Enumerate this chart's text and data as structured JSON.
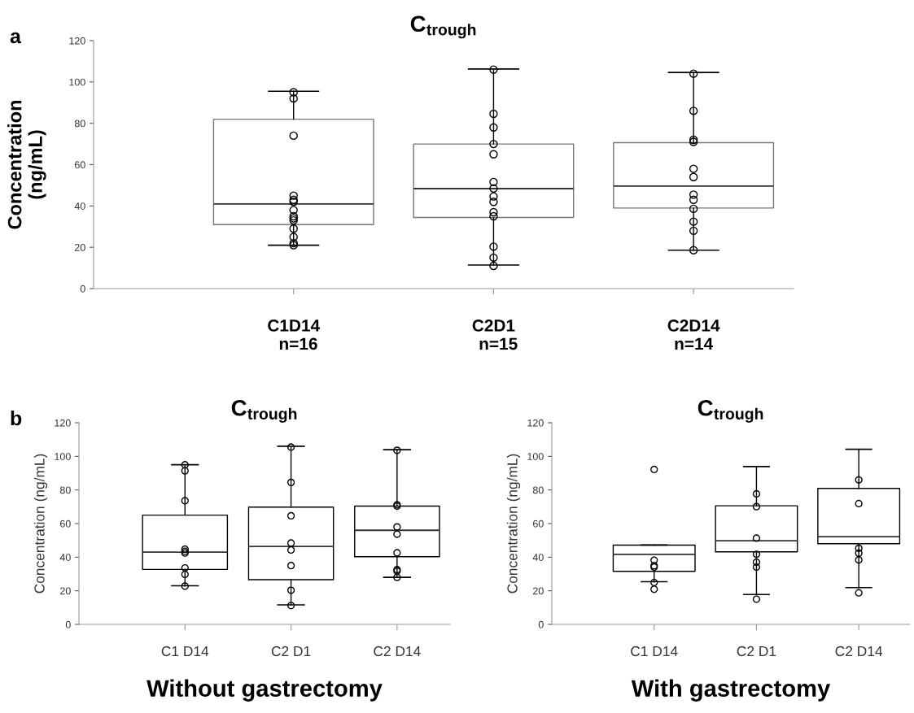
{
  "chart_data": [
    {
      "type": "box",
      "title": "C$_{trough}$",
      "ylabel": "Concentration\n(ng/mL)",
      "annotations": [
        "a"
      ],
      "categories": [
        "C1D14\n  n=16",
        "C2D1\n  n=15",
        "C2D14\nn=14"
      ],
      "ylim": [
        0,
        120
      ],
      "yticks": [
        0,
        20,
        40,
        60,
        80,
        100,
        120
      ],
      "grid": false,
      "marker": "circle",
      "boxes": [
        {
          "low": 21,
          "q1": 31,
          "median": 41,
          "q3": 82,
          "high": 95.5
        },
        {
          "low": 11.4,
          "q1": 34.4,
          "median": 48.4,
          "q3": 70,
          "high": 106.3
        },
        {
          "low": 18.6,
          "q1": 39,
          "median": 49.6,
          "q3": 70.6,
          "high": 104.6
        }
      ],
      "series": [
        {
          "type": "scatter",
          "color": "#000000",
          "x": [
            "C1D14\n  n=16",
            "C1D14\n  n=16",
            "C1D14\n  n=16",
            "C1D14\n  n=16",
            "C1D14\n  n=16",
            "C1D14\n  n=16",
            "C1D14\n  n=16",
            "C1D14\n  n=16",
            "C1D14\n  n=16",
            "C1D14\n  n=16",
            "C1D14\n  n=16",
            "C1D14\n  n=16",
            "C1D14\n  n=16",
            "C1D14\n  n=16",
            "C2D1\n  n=15",
            "C2D1\n  n=15",
            "C2D1\n  n=15",
            "C2D1\n  n=15",
            "C2D1\n  n=15",
            "C2D1\n  n=15",
            "C2D1\n  n=15",
            "C2D1\n  n=15",
            "C2D1\n  n=15",
            "C2D1\n  n=15",
            "C2D1\n  n=15",
            "C2D1\n  n=15",
            "C2D1\n  n=15",
            "C2D1\n  n=15",
            "C2D14\nn=14",
            "C2D14\nn=14",
            "C2D14\nn=14",
            "C2D14\nn=14",
            "C2D14\nn=14",
            "C2D14\nn=14",
            "C2D14\nn=14",
            "C2D14\nn=14",
            "C2D14\nn=14",
            "C2D14\nn=14",
            "C2D14\nn=14",
            "C2D14\nn=14"
          ],
          "values": [
            95,
            92,
            74,
            45,
            43,
            42,
            38,
            35,
            34,
            33,
            29,
            25,
            22,
            21,
            106,
            84.6,
            78,
            70,
            65,
            51.6,
            48.5,
            44.6,
            42,
            37,
            35,
            20.3,
            15,
            11,
            104,
            86,
            72,
            71,
            58,
            54,
            45.5,
            43,
            38.6,
            32.4,
            28,
            18.6
          ]
        }
      ]
    },
    {
      "type": "box",
      "title": "C$_{trough}$",
      "ylabel": "Concentration (ng/mL)",
      "xlabel": "Without gastrectomy",
      "annotations": [
        "b"
      ],
      "categories": [
        "C1 D14",
        "C2 D1",
        "C2 D14"
      ],
      "ylim": [
        0,
        120
      ],
      "yticks": [
        0,
        20,
        40,
        60,
        80,
        100,
        120
      ],
      "grid": false,
      "marker": "circle",
      "boxes": [
        {
          "low": 23,
          "q1": 32.7,
          "median": 43,
          "q3": 65,
          "high": 95
        },
        {
          "low": 11.6,
          "q1": 26.6,
          "median": 46.4,
          "q3": 69.8,
          "high": 106
        },
        {
          "low": 28,
          "q1": 40.3,
          "median": 56,
          "q3": 70.4,
          "high": 104
        }
      ],
      "series": [
        {
          "type": "scatter",
          "color": "#000000",
          "x": [
            "C1 D14",
            "C1 D14",
            "C1 D14",
            "C1 D14",
            "C1 D14",
            "C1 D14",
            "C1 D14",
            "C1 D14",
            "C1 D14",
            "C2 D1",
            "C2 D1",
            "C2 D1",
            "C2 D1",
            "C2 D1",
            "C2 D1",
            "C2 D1",
            "C2 D1",
            "C2 D14",
            "C2 D14",
            "C2 D14",
            "C2 D14",
            "C2 D14",
            "C2 D14",
            "C2 D14",
            "C2 D14",
            "C2 D14"
          ],
          "values": [
            95,
            91.4,
            73.6,
            44.8,
            43.5,
            42.5,
            33.6,
            29.8,
            22.8,
            105.5,
            84.5,
            64.6,
            48.4,
            44.3,
            35,
            20.3,
            11.2,
            103.6,
            71.2,
            70.4,
            58,
            53.7,
            42.6,
            32.6,
            31.7,
            28
          ]
        }
      ]
    },
    {
      "type": "box",
      "title": "C$_{trough}$",
      "ylabel": "Concentration (ng/mL)",
      "xlabel": "With gastrectomy",
      "categories": [
        "C1 D14",
        "C2 D1",
        "C2 D14"
      ],
      "ylim": [
        0,
        120
      ],
      "yticks": [
        0,
        20,
        40,
        60,
        80,
        100,
        120
      ],
      "grid": false,
      "marker": "circle",
      "boxes": [
        {
          "low": 25.4,
          "q1": 31.6,
          "median": 41.7,
          "q3": 47.2,
          "high": 47.2
        },
        {
          "low": 17.8,
          "q1": 43.2,
          "median": 49.8,
          "q3": 70.6,
          "high": 93.9
        },
        {
          "low": 21.9,
          "q1": 48,
          "median": 52.2,
          "q3": 80.9,
          "high": 104.2
        }
      ],
      "series": [
        {
          "type": "scatter",
          "color": "#000000",
          "x": [
            "C1 D14",
            "C1 D14",
            "C1 D14",
            "C1 D14",
            "C1 D14",
            "C1 D14",
            "C2 D1",
            "C2 D1",
            "C2 D1",
            "C2 D1",
            "C2 D1",
            "C2 D1",
            "C2 D1",
            "C2 D14",
            "C2 D14",
            "C2 D14",
            "C2 D14",
            "C2 D14",
            "C2 D14"
          ],
          "values": [
            92.2,
            38.2,
            34.9,
            34.1,
            24.9,
            20.9,
            77.7,
            70.1,
            51.3,
            41.7,
            37,
            34.1,
            15,
            86,
            71.9,
            45.3,
            42.4,
            38.4,
            18.8
          ]
        }
      ]
    }
  ]
}
